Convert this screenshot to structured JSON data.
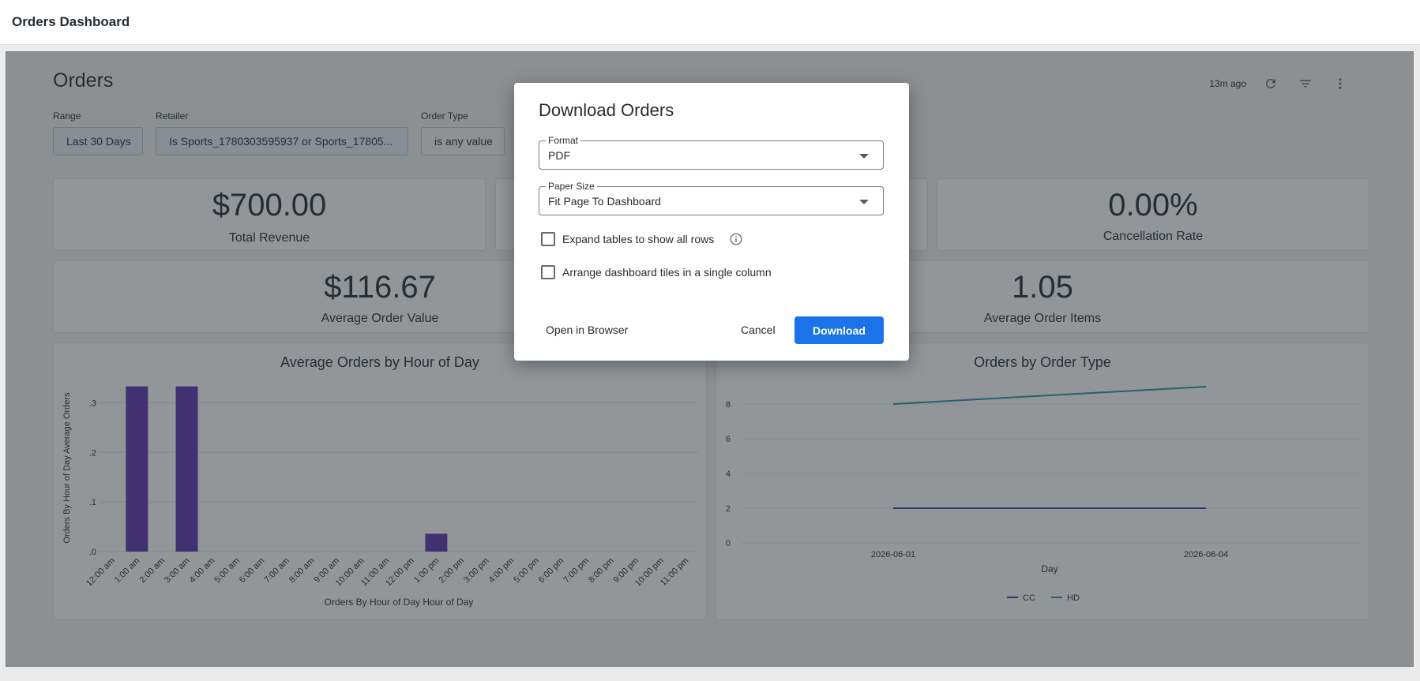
{
  "app": {
    "title": "Orders Dashboard"
  },
  "dashboard": {
    "title": "Orders",
    "updated": "13m ago",
    "filters": [
      {
        "label": "Range",
        "value": "Last 30 Days"
      },
      {
        "label": "Retailer",
        "value": "Is Sports_1780303595937 or Sports_17805..."
      },
      {
        "label": "Order Type",
        "value": "is any value"
      }
    ]
  },
  "kpis": {
    "total_revenue": {
      "value": "$700.00",
      "label": "Total Revenue"
    },
    "cancellation_rate": {
      "value": "0.00%",
      "label": "Cancellation Rate"
    },
    "avg_order_value": {
      "value": "$116.67",
      "label": "Average Order Value"
    },
    "avg_order_items": {
      "value": "1.05",
      "label": "Average Order Items"
    }
  },
  "chart_data": [
    {
      "type": "bar",
      "title": "Average Orders by Hour of Day",
      "xlabel": "Orders By Hour of Day Hour of Day",
      "ylabel": "Orders By Hour of Day Average Orders",
      "categories": [
        "12:00 am",
        "1:00 am",
        "2:00 am",
        "3:00 am",
        "4:00 am",
        "5:00 am",
        "6:00 am",
        "7:00 am",
        "8:00 am",
        "9:00 am",
        "10:00 am",
        "11:00 am",
        "12:00 pm",
        "1:00 pm",
        "2:00 pm",
        "3:00 pm",
        "4:00 pm",
        "5:00 pm",
        "6:00 pm",
        "7:00 pm",
        "8:00 pm",
        "9:00 pm",
        "10:00 pm",
        "11:00 pm"
      ],
      "values": [
        0,
        0.333,
        0,
        0.333,
        0,
        0,
        0,
        0,
        0,
        0,
        0,
        0,
        0,
        0.036,
        0,
        0,
        0,
        0,
        0,
        0,
        0,
        0,
        0,
        0
      ],
      "yticks": [
        ".0",
        ".1",
        ".2",
        ".3"
      ],
      "ylim": [
        0,
        0.35
      ],
      "color": "#5e35b1",
      "grid": true
    },
    {
      "type": "line",
      "title": "Orders by Order Type",
      "xlabel": "Day",
      "ylabel": "",
      "x": [
        "2026-06-01",
        "2026-06-04"
      ],
      "yticks": [
        "0",
        "2",
        "4",
        "6",
        "8"
      ],
      "ylim": [
        0,
        9.5
      ],
      "series": [
        {
          "name": "CC",
          "values": [
            2,
            2
          ],
          "color": "#3f3eaa"
        },
        {
          "name": "HD",
          "values": [
            8,
            9
          ],
          "color": "#2a8fa6"
        }
      ],
      "legend": "bottom",
      "grid": true
    }
  ],
  "modal": {
    "title": "Download Orders",
    "format": {
      "label": "Format",
      "value": "PDF"
    },
    "paper_size": {
      "label": "Paper Size",
      "value": "Fit Page To Dashboard"
    },
    "expand_tables": {
      "label": "Expand tables to show all rows",
      "checked": false
    },
    "single_column": {
      "label": "Arrange dashboard tiles in a single column",
      "checked": false
    },
    "open_browser": "Open in Browser",
    "cancel": "Cancel",
    "download": "Download"
  }
}
